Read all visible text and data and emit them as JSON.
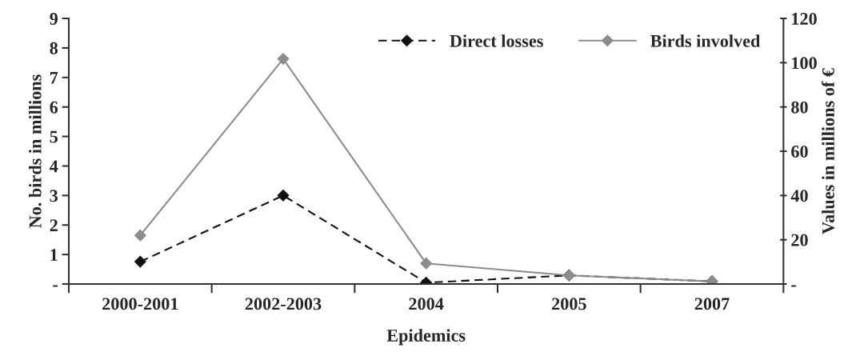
{
  "chart_data": {
    "type": "line",
    "xlabel": "Epidemics",
    "ylabel": "No. birds in millions",
    "y2label": "Values in millions of €",
    "categories": [
      "2000-2001",
      "2002-2003",
      "2004",
      "2005",
      "2007"
    ],
    "series": [
      {
        "name": "Direct losses",
        "color": "#111111",
        "axis": "y2",
        "line_style": "dashed",
        "marker": "diamond",
        "values": [
          10.1,
          40,
          0.6,
          3.9,
          1.2
        ]
      },
      {
        "name": "Birds involved",
        "color": "#8c8c8c",
        "line_style": "solid",
        "marker": "diamond",
        "values": [
          1.65,
          7.63,
          0.7,
          0.29,
          0.09
        ]
      }
    ],
    "ylim": [
      0,
      9
    ],
    "yticks": [
      {
        "value": 0,
        "label": "-"
      },
      1,
      2,
      3,
      4,
      5,
      6,
      7,
      8,
      9
    ],
    "y2lim": [
      0,
      120
    ],
    "y2ticks": [
      {
        "value": 0,
        "label": "-"
      },
      20,
      40,
      60,
      80,
      100,
      120
    ],
    "legend": "top right",
    "grid": false
  }
}
